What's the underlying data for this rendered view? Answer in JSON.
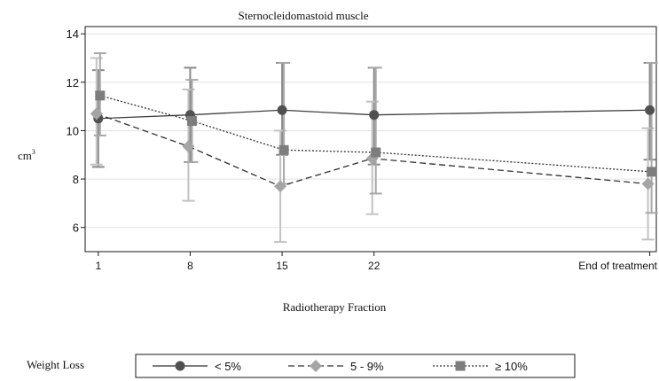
{
  "chart_data": {
    "type": "line",
    "title": "Sternocleidomastoid muscle",
    "xlabel": "Radiotherapy Fraction",
    "ylabel": "cm",
    "ylabel_sup": "3",
    "x": [
      "1",
      "8",
      "15",
      "22",
      "End of treatment"
    ],
    "x_positions": [
      1,
      8,
      15,
      22,
      43
    ],
    "xlim": [
      0,
      43.5
    ],
    "ylim": [
      5,
      14.3
    ],
    "yticks": [
      6,
      8,
      10,
      12,
      14
    ],
    "grid": true,
    "legend": {
      "title": "Weight Loss",
      "placement": "bottom"
    },
    "series": [
      {
        "name": "< 5%",
        "marker": "circle",
        "line": "solid",
        "color": "#505050",
        "errcolor": "#8a8a8a",
        "values": [
          10.5,
          10.65,
          10.85,
          10.65,
          10.85
        ],
        "lower": [
          8.5,
          8.7,
          9.0,
          8.6,
          8.8
        ],
        "upper": [
          12.5,
          12.6,
          12.8,
          12.6,
          12.8
        ]
      },
      {
        "name": "5 - 9%",
        "marker": "diamond",
        "line": "dashed",
        "color": "#a5a5a5",
        "errcolor": "#c2c2c2",
        "values": [
          10.7,
          9.35,
          7.7,
          8.85,
          7.8
        ],
        "lower": [
          8.6,
          7.1,
          5.4,
          6.55,
          5.5
        ],
        "upper": [
          13.0,
          11.7,
          10.0,
          11.2,
          10.1
        ]
      },
      {
        "name": "≥ 10%",
        "marker": "square",
        "line": "dotted",
        "color": "#7d7d7d",
        "errcolor": "#a8a8a8",
        "values": [
          11.45,
          10.4,
          9.2,
          9.1,
          8.3
        ],
        "lower": [
          9.8,
          8.7,
          7.8,
          7.4,
          6.6
        ],
        "upper": [
          13.2,
          12.1,
          12.8,
          12.6,
          12.8
        ]
      }
    ]
  }
}
